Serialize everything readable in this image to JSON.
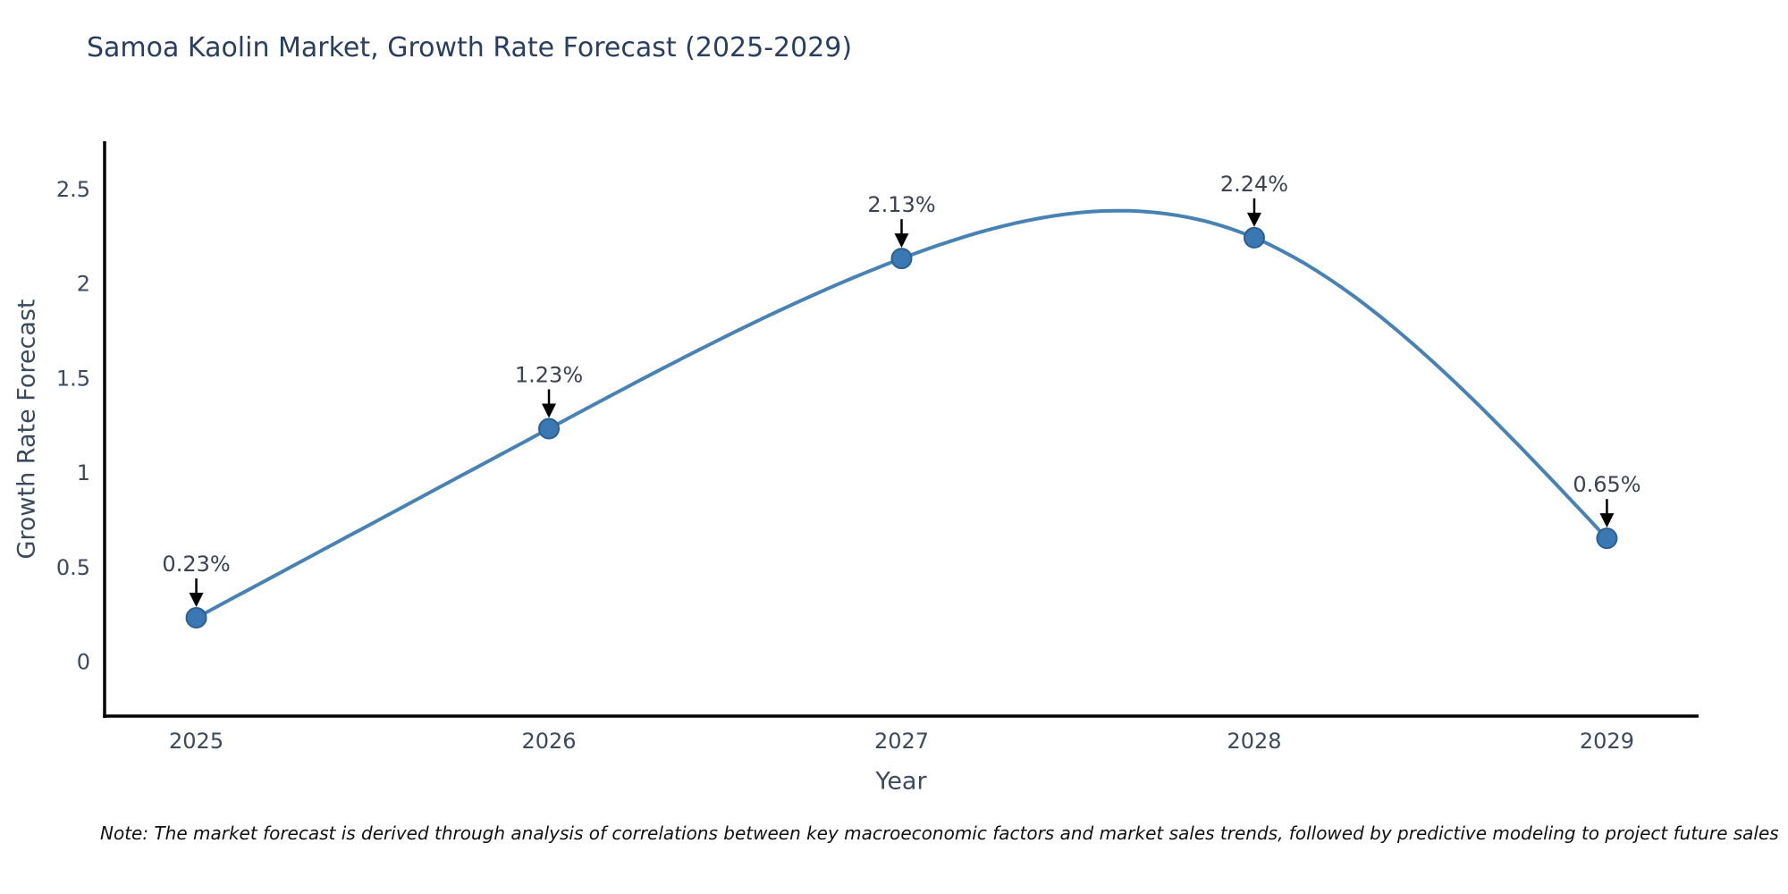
{
  "chart_data": {
    "type": "line",
    "title": "Samoa Kaolin Market, Growth Rate Forecast (2025-2029)",
    "xlabel": "Year",
    "ylabel": "Growth Rate Forecast",
    "x": [
      2025,
      2026,
      2027,
      2028,
      2029
    ],
    "series": [
      {
        "name": "Growth Rate Forecast",
        "values": [
          0.23,
          1.23,
          2.13,
          2.24,
          0.65
        ],
        "point_labels": [
          "0.23%",
          "1.23%",
          "2.13%",
          "2.24%",
          "0.65%"
        ]
      }
    ],
    "yticks": [
      0,
      0.5,
      1,
      1.5,
      2,
      2.5
    ],
    "ylim": [
      -0.29,
      2.75
    ],
    "xlim": [
      2024.74,
      2029.26
    ],
    "grid": false,
    "legend_position": "none",
    "smooth_spline": true,
    "annotations_have_arrows": true,
    "note": "Note: The market forecast is derived through analysis of correlations between key macroeconomic factors and market sales trends, followed by predictive modeling to project future sales",
    "colors": {
      "line": "#4682b4",
      "marker": "#3a78b3",
      "marker_edge": "#2d5f92",
      "axis": "#000000",
      "tick_text": "#3b4a5c",
      "title_text": "#2a3f5f",
      "annotation_text": "#3b4252",
      "arrow": "#000000",
      "note_text": "#111111"
    }
  }
}
